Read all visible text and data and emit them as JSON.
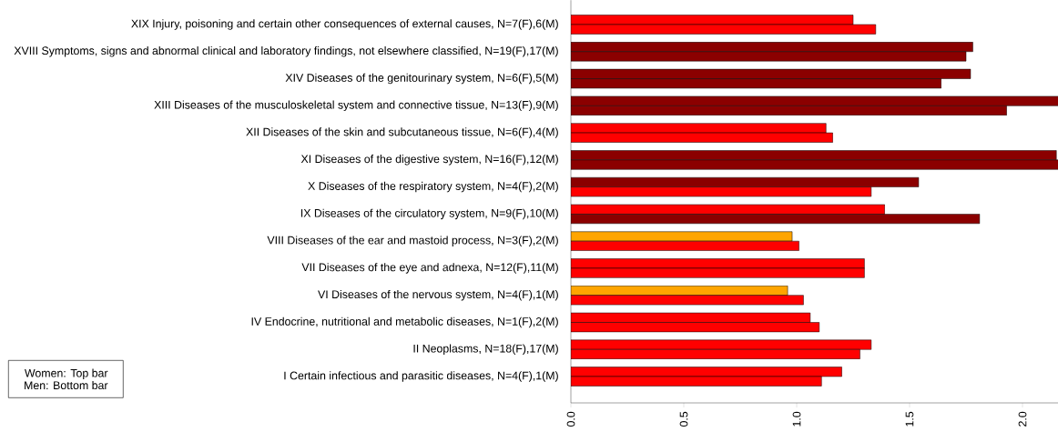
{
  "chart_data": {
    "type": "bar",
    "orientation": "horizontal",
    "categories": [
      "XIX Injury, poisoning and certain other consequences of external causes, N=7(F),6(M)",
      "XVIII Symptoms, signs and abnormal clinical and laboratory findings, not elsewhere classified, N=19(F),17(M)",
      "XIV Diseases of the genitourinary system, N=6(F),5(M)",
      "XIII Diseases of the musculoskeletal system and connective tissue, N=13(F),9(M)",
      "XII Diseases of the skin and subcutaneous tissue, N=6(F),4(M)",
      "XI Diseases of the digestive system, N=16(F),12(M)",
      "X Diseases of the respiratory system, N=4(F),2(M)",
      "IX Diseases of the circulatory system, N=9(F),10(M)",
      "VIII Diseases of the ear and mastoid process, N=3(F),2(M)",
      "VII Diseases of the eye and adnexa, N=12(F),11(M)",
      "VI Diseases of the nervous system, N=4(F),1(M)",
      "IV Endocrine, nutritional and metabolic diseases, N=1(F),2(M)",
      "II Neoplasms, N=18(F),17(M)",
      "I Certain infectious and parasitic diseases, N=4(F),1(M)"
    ],
    "series": [
      {
        "values": [
          1.25,
          1.78,
          1.77,
          2.16,
          1.13,
          2.15,
          1.54,
          1.39,
          0.98,
          1.3,
          0.96,
          1.06,
          1.33,
          1.2
        ],
        "colors": [
          "#ff0000",
          "#8b0000",
          "#8b0000",
          "#8b0000",
          "#ff0000",
          "#8b0000",
          "#8b0000",
          "#ff0000",
          "#ffa500",
          "#ff0000",
          "#ffa500",
          "#ff0000",
          "#ff0000",
          "#ff0000"
        ]
      },
      {
        "values": [
          1.35,
          1.75,
          1.64,
          1.93,
          1.16,
          2.16,
          1.33,
          1.81,
          1.01,
          1.3,
          1.03,
          1.1,
          1.28,
          1.11
        ],
        "colors": [
          "#ff0000",
          "#8b0000",
          "#8b0000",
          "#8b0000",
          "#ff0000",
          "#8b0000",
          "#ff0000",
          "#8b0000",
          "#ff0000",
          "#ff0000",
          "#ff0000",
          "#ff0000",
          "#ff0000",
          "#ff0000"
        ]
      }
    ],
    "xlim": [
      0,
      2.16
    ],
    "xticks": [
      {
        "value": 0,
        "label": "0.0"
      },
      {
        "value": 0.5,
        "label": "0.5"
      },
      {
        "value": 1,
        "label": "1.0"
      },
      {
        "value": 1.5,
        "label": "1.5"
      },
      {
        "value": 2,
        "label": "2.0"
      }
    ],
    "annotations": [
      "Women: Top bar",
      "Men: Bottom bar"
    ]
  }
}
